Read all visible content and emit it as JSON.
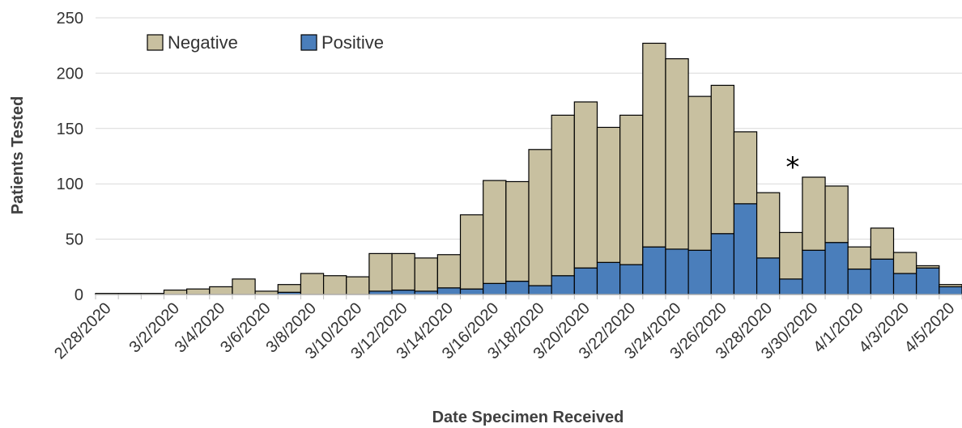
{
  "chart_data": {
    "type": "bar",
    "stacked": true,
    "xlabel": "Date Specimen Received",
    "ylabel": "Patients Tested",
    "ylim": [
      0,
      250
    ],
    "yticks": [
      0,
      50,
      100,
      150,
      200,
      250
    ],
    "grid": true,
    "legend_position": "top-left",
    "categories": [
      "2/28/2020",
      "2/29/2020",
      "3/1/2020",
      "3/2/2020",
      "3/3/2020",
      "3/4/2020",
      "3/5/2020",
      "3/6/2020",
      "3/7/2020",
      "3/8/2020",
      "3/9/2020",
      "3/10/2020",
      "3/11/2020",
      "3/12/2020",
      "3/13/2020",
      "3/14/2020",
      "3/15/2020",
      "3/16/2020",
      "3/17/2020",
      "3/18/2020",
      "3/19/2020",
      "3/20/2020",
      "3/21/2020",
      "3/22/2020",
      "3/23/2020",
      "3/24/2020",
      "3/25/2020",
      "3/26/2020",
      "3/27/2020",
      "3/28/2020",
      "3/29/2020",
      "3/30/2020",
      "3/31/2020",
      "4/1/2020",
      "4/2/2020",
      "4/3/2020",
      "4/4/2020",
      "4/5/2020"
    ],
    "tick_labels": [
      "2/28/2020",
      "3/2/2020",
      "3/4/2020",
      "3/6/2020",
      "3/8/2020",
      "3/10/2020",
      "3/12/2020",
      "3/14/2020",
      "3/16/2020",
      "3/18/2020",
      "3/20/2020",
      "3/22/2020",
      "3/24/2020",
      "3/26/2020",
      "3/28/2020",
      "3/30/2020",
      "4/1/2020",
      "4/3/2020",
      "4/5/2020"
    ],
    "series": [
      {
        "name": "Positive",
        "color": "#4a7ebb",
        "values": [
          0,
          0,
          0,
          0,
          0,
          0,
          0,
          0,
          2,
          0,
          0,
          0,
          3,
          4,
          3,
          6,
          5,
          10,
          12,
          8,
          17,
          24,
          29,
          27,
          43,
          41,
          40,
          55,
          82,
          33,
          14,
          40,
          47,
          23,
          32,
          19,
          24,
          7
        ]
      },
      {
        "name": "Negative",
        "color": "#c8c0a0",
        "values": [
          1,
          1,
          1,
          4,
          5,
          7,
          14,
          3,
          7,
          19,
          17,
          16,
          34,
          33,
          30,
          30,
          67,
          93,
          90,
          123,
          145,
          150,
          122,
          135,
          184,
          172,
          139,
          134,
          65,
          59,
          42,
          66,
          51,
          20,
          28,
          19,
          2,
          2
        ]
      }
    ],
    "annotation": {
      "text": "*",
      "near_category": "3/29/2020"
    }
  }
}
